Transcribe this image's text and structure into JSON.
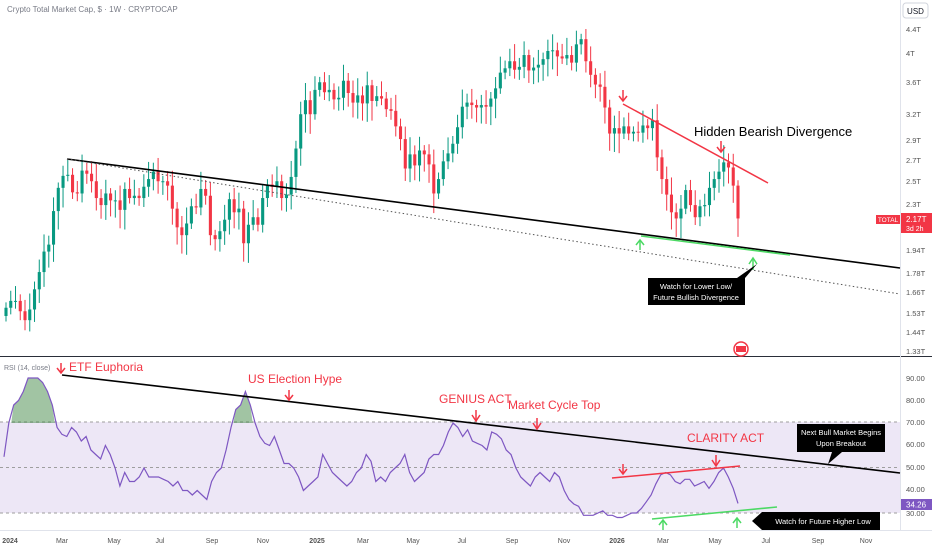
{
  "header": {
    "title": "Crypto Total Market Cap, $ · 1W · CRYPTOCAP",
    "currency_button": "USD"
  },
  "price_scale": {
    "ticks": [
      "4.4T",
      "4T",
      "3.6T",
      "3.2T",
      "2.9T",
      "2.7T",
      "2.5T",
      "2.3T",
      "1.94T",
      "1.78T",
      "1.66T",
      "1.53T",
      "1.44T",
      "1.33T"
    ],
    "last_label": "TOTAL",
    "last_value": "2.17T",
    "countdown": "3d 2h"
  },
  "rsi_panel": {
    "label": "RSI (14, close)",
    "ticks": [
      "90.00",
      "80.00",
      "70.00",
      "60.00",
      "50.00",
      "40.00",
      "30.00"
    ],
    "last_value": "34.26"
  },
  "time_axis": [
    "2024",
    "Mar",
    "May",
    "Jul",
    "Sep",
    "Nov",
    "2025",
    "Mar",
    "May",
    "Jul",
    "Sep",
    "Nov",
    "2026",
    "Mar",
    "May",
    "Jul",
    "Sep",
    "Nov"
  ],
  "annotations": {
    "hidden_bearish": "Hidden Bearish Divergence",
    "lower_low_line1": "Watch for Lower Low/",
    "lower_low_line2": "Future Bullish Divergence",
    "etf": "ETF Euphoria",
    "election": "US Election Hype",
    "genius": "GENIUS ACT",
    "cycle_top": "Market Cycle Top",
    "clarity": "CLARITY ACT",
    "next_bull_line1": "Next Bull Market Begins",
    "next_bull_line2": "Upon Breakout",
    "higher_low": "Watch for Future Higher Low"
  },
  "colors": {
    "up": "#089981",
    "down": "#f23645",
    "rsi_line": "#7e57c2",
    "rsi_band": "#ede7f6",
    "trend_black": "#000000",
    "red_line": "#f23645",
    "green_line": "#4cd964"
  },
  "chart_data": [
    {
      "type": "candlestick",
      "title": "Crypto Total Market Cap, $ · 1W · CRYPTOCAP",
      "interval": "1W",
      "y_scale": "log",
      "ylim": [
        1.33,
        4.5
      ],
      "x_range": [
        "2024-01-01",
        "2026-11-30"
      ],
      "last_value": 2.17,
      "trend_lines": {
        "main_support": [
          [
            "2024-03-11",
            2.72
          ],
          [
            "2026-10-26",
            1.8
          ]
        ],
        "hidden_bearish": [
          [
            "2026-01-19",
            3.28
          ],
          [
            "2026-06-22",
            2.55
          ]
        ],
        "lower_low_watch": [
          [
            "2026-02-02",
            2.04
          ],
          [
            "2026-06-01",
            1.97
          ]
        ]
      },
      "closes": [
        1.56,
        1.6,
        1.6,
        1.54,
        1.49,
        1.55,
        1.67,
        1.78,
        1.92,
        1.97,
        2.23,
        2.43,
        2.54,
        2.55,
        2.39,
        2.38,
        2.59,
        2.56,
        2.49,
        2.34,
        2.28,
        2.38,
        2.32,
        2.32,
        2.24,
        2.42,
        2.34,
        2.36,
        2.34,
        2.44,
        2.51,
        2.58,
        2.49,
        2.49,
        2.45,
        2.25,
        2.1,
        2.04,
        2.13,
        2.27,
        2.26,
        2.42,
        2.36,
        2.04,
        2.01,
        2.07,
        2.16,
        2.33,
        2.22,
        2.25,
        1.98,
        2.12,
        2.18,
        2.12,
        2.34,
        2.46,
        2.44,
        2.49,
        2.34,
        2.37,
        2.53,
        2.81,
        3.19,
        3.36,
        3.19,
        3.49,
        3.59,
        3.46,
        3.49,
        3.37,
        3.39,
        3.61,
        3.45,
        3.33,
        3.42,
        3.32,
        3.55,
        3.35,
        3.41,
        3.38,
        3.25,
        3.23,
        3.05,
        2.91,
        2.61,
        2.75,
        2.64,
        2.79,
        2.75,
        2.65,
        2.38,
        2.51,
        2.68,
        2.76,
        2.86,
        3.04,
        3.28,
        3.33,
        3.3,
        3.27,
        3.3,
        3.28,
        3.38,
        3.51,
        3.72,
        3.78,
        3.88,
        3.76,
        3.8,
        3.97,
        3.75,
        3.79,
        3.83,
        3.91,
        4.03,
        4.04,
        3.95,
        3.92,
        3.97,
        3.86,
        4.13,
        4.21,
        3.88,
        3.69,
        3.56,
        3.53,
        3.27,
        2.97,
        3.03,
        2.97,
        3.05,
        2.97,
        2.99,
        2.98,
        3.06,
        3.03,
        3.12,
        2.72,
        2.51,
        2.37,
        2.22,
        2.17,
        2.25,
        2.41,
        2.28,
        2.18,
        2.27,
        2.28,
        2.43,
        2.51,
        2.58,
        2.67,
        2.62,
        2.45,
        2.17
      ]
    },
    {
      "type": "line",
      "title": "RSI (14, close)",
      "ylim": [
        27,
        97
      ],
      "bands": [
        30,
        50,
        70
      ],
      "last_value": 34.26,
      "trend_lines": {
        "resistance": [
          [
            "2024-03-04",
            90
          ],
          [
            "2026-11-30",
            48
          ]
        ],
        "bearish_divergence": [
          [
            "2026-01-12",
            45
          ],
          [
            "2026-05-25",
            51
          ]
        ],
        "higher_low": [
          [
            "2026-02-23",
            28
          ],
          [
            "2026-07-06",
            33
          ]
        ]
      },
      "values": [
        55,
        70,
        78,
        80,
        84,
        90,
        90,
        90,
        88,
        84,
        78,
        68,
        65,
        64,
        68,
        66,
        62,
        64,
        58,
        56,
        54,
        60,
        56,
        50,
        42,
        48,
        44,
        44,
        46,
        50,
        46,
        46,
        46,
        45,
        44,
        42,
        44,
        40,
        40,
        38,
        40,
        38,
        36,
        44,
        48,
        50,
        58,
        68,
        76,
        78,
        84,
        78,
        70,
        64,
        61,
        60,
        64,
        58,
        52,
        52,
        50,
        46,
        40,
        42,
        44,
        46,
        56,
        52,
        48,
        46,
        44,
        42,
        44,
        48,
        50,
        56,
        53,
        44,
        46,
        44,
        48,
        50,
        52,
        56,
        48,
        44,
        46,
        48,
        54,
        56,
        56,
        60,
        66,
        70,
        68,
        64,
        67,
        62,
        61,
        60,
        58,
        66,
        65,
        63,
        58,
        56,
        50,
        46,
        44,
        42,
        46,
        48,
        46,
        44,
        48,
        46,
        40,
        36,
        34,
        33,
        29,
        29,
        29,
        30,
        31,
        29,
        29,
        28,
        28,
        29,
        30,
        30,
        32,
        35,
        38,
        43,
        47,
        48,
        47,
        44,
        43,
        45,
        45,
        42,
        43,
        44,
        41,
        44,
        48,
        50,
        46,
        41,
        34.26
      ]
    }
  ]
}
